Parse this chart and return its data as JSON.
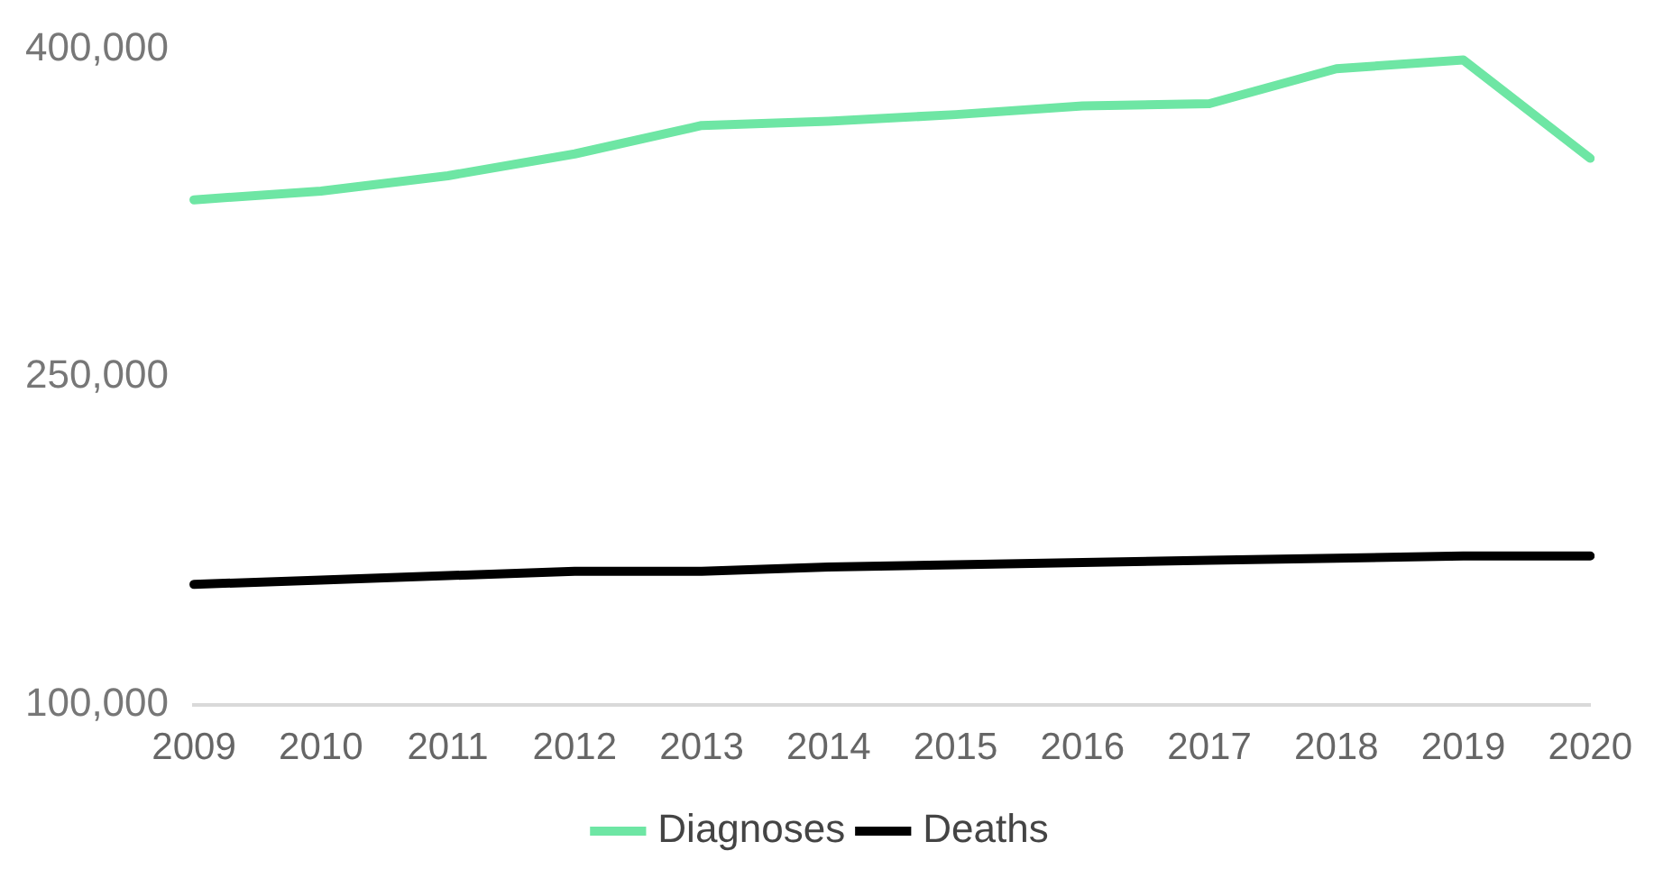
{
  "chart_data": {
    "type": "line",
    "categories": [
      "2009",
      "2010",
      "2011",
      "2012",
      "2013",
      "2014",
      "2015",
      "2016",
      "2017",
      "2018",
      "2019",
      "2020"
    ],
    "series": [
      {
        "name": "Diagnoses",
        "color": "#6ee6a4",
        "values": [
          331000,
          335000,
          342000,
          352000,
          365000,
          367000,
          370000,
          374000,
          375000,
          391000,
          395000,
          350000
        ]
      },
      {
        "name": "Deaths",
        "color": "#000000",
        "values": [
          155000,
          157000,
          159000,
          161000,
          161000,
          163000,
          164000,
          165000,
          166000,
          167000,
          168000,
          168000
        ]
      }
    ],
    "ylim": [
      100000,
      400000
    ],
    "yticks": [
      {
        "value": 100000,
        "label": "100,000"
      },
      {
        "value": 250000,
        "label": "250,000"
      },
      {
        "value": 400000,
        "label": "400,000"
      }
    ],
    "grid": false,
    "legend": "bottom",
    "marker": "none",
    "line_style": "solid"
  }
}
